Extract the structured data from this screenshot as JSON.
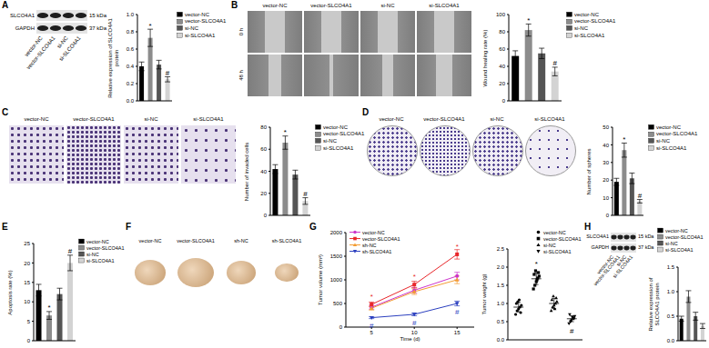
{
  "panels": [
    "A",
    "B",
    "C",
    "D",
    "E",
    "F",
    "G",
    "H"
  ],
  "images": [
    {
      "panel": "A",
      "type": "western_blot",
      "bands": [
        {
          "name": "SLCO4A1",
          "size": "15 kDa"
        },
        {
          "name": "GAPDH",
          "size": "37 kDa"
        }
      ],
      "lanes": [
        "vector-NC",
        "vector-SLCO4A1",
        "si-NC",
        "si-SLCO4A1"
      ]
    },
    {
      "panel": "B",
      "type": "wound_healing",
      "columns": [
        "vector-NC",
        "vector-SLCO4A1",
        "si-NC",
        "si-SLCO4A1"
      ],
      "rows": [
        "0 h",
        "48 h"
      ]
    },
    {
      "panel": "C",
      "type": "transwell",
      "columns": [
        "vector-NC",
        "vector-SLCO4A1",
        "si-NC",
        "si-SLCO4A1"
      ]
    },
    {
      "panel": "D",
      "type": "colony",
      "columns": [
        "vector-NC",
        "vector-SLCO4A1",
        "si-NC",
        "si-SLCO4A1"
      ]
    },
    {
      "panel": "F",
      "type": "tumor",
      "columns": [
        "vector-NC",
        "vector-SLCO4A1",
        "sh-NC",
        "sh-SLCO4A1"
      ]
    },
    {
      "panel": "H",
      "type": "western_blot",
      "bands": [
        {
          "name": "SLCO4A1",
          "size": "15 kDa"
        },
        {
          "name": "GAPDH",
          "size": "37 kDa"
        }
      ],
      "lanes": [
        "vector-NC",
        "vector-SLCO4A1",
        "si-NC",
        "si-SLCO4A1"
      ]
    }
  ],
  "chart_data": [
    {
      "panel": "A",
      "type": "bar",
      "y_label": "Relative expression of SLCO4A1 protein",
      "categories": [
        "vector-NC",
        "vector-SLCO4A1",
        "si-NC",
        "si-SLCO4A1"
      ],
      "colors": [
        "#000000",
        "#8c8c8c",
        "#555555",
        "#d3d3d3"
      ],
      "values": [
        0.4,
        0.73,
        0.42,
        0.25
      ],
      "errors": [
        0.05,
        0.1,
        0.05,
        0.03
      ],
      "marks": [
        null,
        "*",
        null,
        "#"
      ],
      "ylim": [
        0,
        1
      ],
      "yticks": [
        {
          "value": 0,
          "label": "0.0"
        },
        0.2,
        0.4,
        0.6,
        0.8,
        {
          "value": 1,
          "label": "1.0"
        }
      ],
      "tick_labels": "y",
      "legend": "right"
    },
    {
      "panel": "B",
      "type": "bar",
      "y_label": "Wound healing rate (%)",
      "categories": [
        "vector-NC",
        "vector-SLCO4A1",
        "si-NC",
        "si-SLCO4A1"
      ],
      "colors": [
        "#000000",
        "#8c8c8c",
        "#555555",
        "#d3d3d3"
      ],
      "values": [
        52,
        82,
        55,
        34
      ],
      "errors": [
        6,
        7,
        6,
        5
      ],
      "marks": [
        null,
        "*",
        null,
        "#"
      ],
      "ylim": [
        0,
        100
      ],
      "yticks": [
        0,
        20,
        40,
        60,
        80,
        100
      ],
      "tick_labels": "y",
      "legend": "right"
    },
    {
      "panel": "C",
      "type": "bar",
      "y_label": "Number of invaded cells",
      "categories": [
        "vector-NC",
        "vector-SLCO4A1",
        "si-NC",
        "si-SLCO4A1"
      ],
      "colors": [
        "#000000",
        "#8c8c8c",
        "#555555",
        "#d3d3d3"
      ],
      "values": [
        42,
        66,
        37,
        13
      ],
      "errors": [
        4,
        6,
        4,
        3
      ],
      "marks": [
        null,
        "*",
        null,
        "#"
      ],
      "ylim": [
        0,
        80
      ],
      "yticks": [
        0,
        20,
        40,
        60,
        80
      ],
      "tick_labels": "y",
      "legend": "right"
    },
    {
      "panel": "D",
      "type": "bar",
      "y_label": "Number of spheres",
      "categories": [
        "vector-NC",
        "vector-SLCO4A1",
        "si-NC",
        "si-SLCO4A1"
      ],
      "colors": [
        "#000000",
        "#8c8c8c",
        "#555555",
        "#d3d3d3"
      ],
      "values": [
        19,
        37,
        21,
        8
      ],
      "errors": [
        2,
        4,
        3,
        1
      ],
      "marks": [
        null,
        "*",
        null,
        "#"
      ],
      "ylim": [
        0,
        50
      ],
      "yticks": [
        0,
        10,
        20,
        30,
        40,
        50
      ],
      "tick_labels": "y",
      "legend": "right"
    },
    {
      "panel": "E",
      "type": "bar",
      "y_label": "Apoptosis rate (%)",
      "categories": [
        "vector-NC",
        "vector-SLCO4A1",
        "si-NC",
        "si-SLCO4A1"
      ],
      "colors": [
        "#000000",
        "#8c8c8c",
        "#555555",
        "#d3d3d3"
      ],
      "values": [
        13,
        6.5,
        12,
        20
      ],
      "errors": [
        1.5,
        1,
        1.5,
        2
      ],
      "marks": [
        null,
        "*",
        null,
        "#"
      ],
      "ylim": [
        0,
        25
      ],
      "yticks": [
        0,
        5,
        10,
        15,
        20,
        25
      ],
      "tick_labels": "y",
      "legend": "right"
    },
    {
      "panel": "G",
      "type": "line",
      "x_label": "Time (d)",
      "y_label": "Tumor volume (mm³)",
      "x": [
        5,
        10,
        15
      ],
      "xlim": [
        2,
        17
      ],
      "xticks": [
        5,
        10,
        15
      ],
      "ylim": [
        0,
        2000
      ],
      "yticks": [
        0,
        500,
        1000,
        1500,
        2000
      ],
      "legend": "upper left",
      "series": [
        {
          "name": "vector-NC",
          "color": "#cc33cc",
          "marker": "circle",
          "values": [
            420,
            780,
            1080
          ],
          "errors": [
            40,
            60,
            80
          ]
        },
        {
          "name": "vector-SLCO4A1",
          "color": "#e8262a",
          "marker": "square",
          "values": [
            480,
            900,
            1540
          ],
          "errors": [
            50,
            70,
            100
          ],
          "marks": [
            "*",
            "*",
            "*"
          ]
        },
        {
          "name": "sh-NC",
          "color": "#f39c32",
          "marker": "triangle",
          "values": [
            400,
            750,
            1000
          ],
          "errors": [
            40,
            60,
            80
          ]
        },
        {
          "name": "sh-SLCO4A1",
          "color": "#2b3fbf",
          "marker": "triangle-down",
          "values": [
            200,
            270,
            500
          ],
          "errors": [
            20,
            30,
            50
          ],
          "marks": [
            "#",
            "#",
            "#"
          ]
        }
      ]
    },
    {
      "panel": "G",
      "type": "scatter",
      "y_label": "Tumor weight (g)",
      "ylim": [
        0,
        2.5
      ],
      "yticks": [
        {
          "value": 0,
          "label": "0.0"
        },
        0.5,
        {
          "value": 1,
          "label": "1.0"
        },
        1.5,
        {
          "value": 2,
          "label": "2.0"
        },
        2.5
      ],
      "tick_labels": "y",
      "legend": "upper right",
      "series": [
        {
          "name": "vector-NC",
          "color": "#000000",
          "marker": "circle",
          "values": [
            0.7,
            0.8,
            0.85,
            0.9,
            0.95,
            1.0,
            1.05,
            1.1,
            0.75
          ],
          "mean": 0.9,
          "sd": 0.13
        },
        {
          "name": "vector-SLCO4A1",
          "color": "#000000",
          "marker": "square",
          "values": [
            1.4,
            1.5,
            1.6,
            1.7,
            1.75,
            1.8,
            1.9,
            1.65,
            1.85
          ],
          "mean": 1.68,
          "sd": 0.16,
          "mark": "*"
        },
        {
          "name": "si-NC",
          "color": "#000000",
          "marker": "triangle",
          "values": [
            0.8,
            0.9,
            0.95,
            1.0,
            1.05,
            1.1,
            1.2,
            0.85,
            1.15
          ],
          "mean": 1.0,
          "sd": 0.14
        },
        {
          "name": "si-SLCO4A1",
          "color": "#000000",
          "marker": "triangle-down",
          "values": [
            0.45,
            0.5,
            0.55,
            0.6,
            0.65,
            0.7,
            0.52,
            0.62,
            0.58
          ],
          "mean": 0.58,
          "sd": 0.08,
          "mark": "#"
        }
      ]
    },
    {
      "panel": "H",
      "type": "bar",
      "y_label": "Relative expression of SLCO4A1 protein",
      "categories": [
        "vector-NC",
        "vector-SLCO4A1",
        "si-NC",
        "si-SLCO4A1"
      ],
      "colors": [
        "#000000",
        "#8c8c8c",
        "#555555",
        "#d3d3d3"
      ],
      "values": [
        0.45,
        0.9,
        0.5,
        0.3
      ],
      "errors": [
        0.05,
        0.12,
        0.08,
        0.05
      ],
      "ylim": [
        0,
        1.5
      ],
      "yticks": [
        {
          "value": 0,
          "label": "0.0"
        },
        0.5,
        {
          "value": 1,
          "label": "1.0"
        },
        1.5
      ],
      "tick_labels": "y",
      "legend": "upper right"
    }
  ]
}
